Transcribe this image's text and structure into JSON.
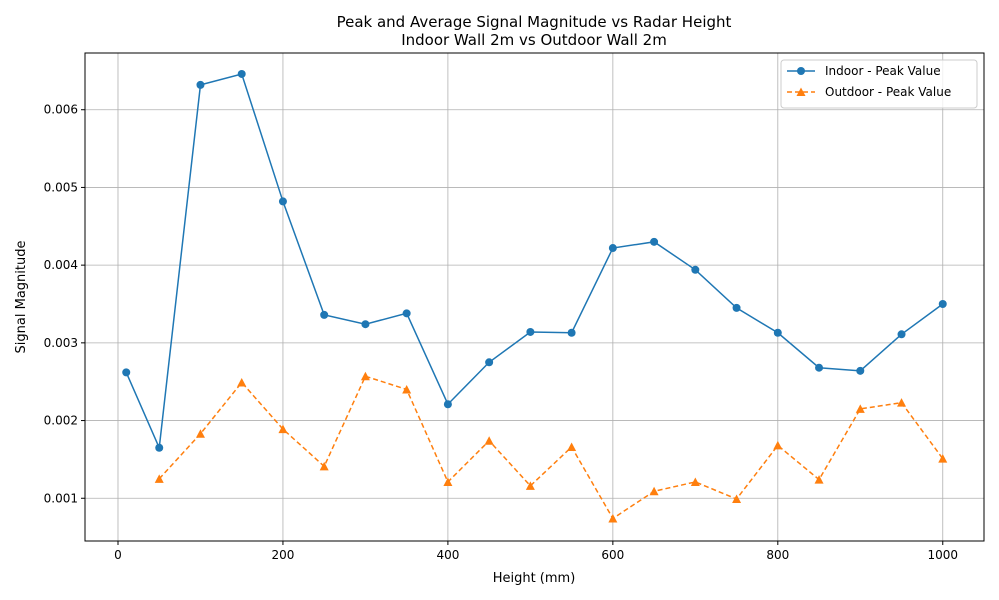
{
  "chart_data": {
    "type": "line",
    "title_line1": "Peak and Average Signal Magnitude vs Radar Height",
    "title_line2": "Indoor Wall 2m vs Outdoor Wall 2m",
    "xlabel": "Height (mm)",
    "ylabel": "Signal Magnitude",
    "xlim": [
      -40,
      1050
    ],
    "ylim": [
      0.00045,
      0.00673
    ],
    "xticks": [
      0,
      200,
      400,
      600,
      800,
      1000
    ],
    "yticks": [
      0.001,
      0.002,
      0.003,
      0.004,
      0.005,
      0.006
    ],
    "ytick_labels": [
      "0.001",
      "0.002",
      "0.003",
      "0.004",
      "0.005",
      "0.006"
    ],
    "grid": true,
    "legend_position": "top-right",
    "series": [
      {
        "name": "Indoor - Peak Value",
        "color": "#1f77b4",
        "marker": "circle",
        "linestyle": "solid",
        "x": [
          10,
          50,
          100,
          150,
          200,
          250,
          300,
          350,
          400,
          450,
          500,
          550,
          600,
          650,
          700,
          750,
          800,
          850,
          900,
          950,
          1000
        ],
        "y": [
          0.00262,
          0.00165,
          0.00632,
          0.00646,
          0.00482,
          0.00336,
          0.00324,
          0.00338,
          0.00221,
          0.00275,
          0.00314,
          0.00313,
          0.00422,
          0.0043,
          0.00394,
          0.00345,
          0.00313,
          0.00268,
          0.00264,
          0.00311,
          0.0035
        ]
      },
      {
        "name": "Outdoor - Peak Value",
        "color": "#ff7f0e",
        "marker": "triangle",
        "linestyle": "dashed",
        "x": [
          50,
          100,
          150,
          200,
          250,
          300,
          350,
          400,
          450,
          500,
          550,
          600,
          650,
          700,
          750,
          800,
          850,
          900,
          950,
          1000
        ],
        "y": [
          0.00125,
          0.00183,
          0.00249,
          0.00189,
          0.00141,
          0.00257,
          0.0024,
          0.00121,
          0.00174,
          0.00116,
          0.00166,
          0.00074,
          0.00109,
          0.00121,
          0.00099,
          0.00168,
          0.00124,
          0.00215,
          0.00223,
          0.00151
        ]
      }
    ]
  }
}
